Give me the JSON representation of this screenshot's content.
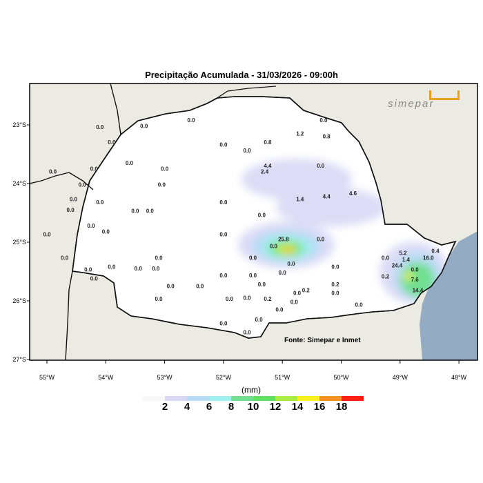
{
  "title": "Precipitação Acumulada - 31/03/2026 - 09:00h",
  "source": "Fonte: Simepar e Inmet",
  "logo": "simepar",
  "legend": {
    "unit": "(mm)",
    "ticks": [
      "2",
      "4",
      "6",
      "8",
      "10",
      "12",
      "14",
      "16",
      "18"
    ],
    "colors": [
      "#f8f8f8",
      "#d8d8f4",
      "#b8dcf4",
      "#a0f0f0",
      "#70e090",
      "#60e060",
      "#a8ec40",
      "#f8f020",
      "#f89020",
      "#f82010"
    ]
  },
  "axes": {
    "lat": [
      "23°S",
      "24°S",
      "25°S",
      "26°S",
      "27°S"
    ],
    "lon": [
      "55°W",
      "54°W",
      "53°W",
      "52°W",
      "51°W",
      "50°W",
      "49°W",
      "48°W"
    ]
  },
  "colors": {
    "land": "#ecebe3",
    "ocean": "#93acc4",
    "state": "#ffffff"
  },
  "stations": [
    {
      "v": "0.0",
      "lon": -54.1,
      "lat": -23.07
    },
    {
      "v": "0.0",
      "lon": -53.35,
      "lat": -23.05
    },
    {
      "v": "0.0",
      "lon": -52.55,
      "lat": -22.95
    },
    {
      "v": "1.2",
      "lon": -50.7,
      "lat": -23.18
    },
    {
      "v": "0.8",
      "lon": -50.25,
      "lat": -23.23
    },
    {
      "v": "0.0",
      "lon": -50.3,
      "lat": -22.95
    },
    {
      "v": "0.0",
      "lon": -53.9,
      "lat": -23.33
    },
    {
      "v": "0.0",
      "lon": -52.0,
      "lat": -23.37
    },
    {
      "v": "0.0",
      "lon": -51.6,
      "lat": -23.47
    },
    {
      "v": "0.8",
      "lon": -51.25,
      "lat": -23.33
    },
    {
      "v": "0.0",
      "lon": -54.2,
      "lat": -23.78
    },
    {
      "v": "0.0",
      "lon": -54.9,
      "lat": -23.83
    },
    {
      "v": "0.0",
      "lon": -53.6,
      "lat": -23.68
    },
    {
      "v": "0.0",
      "lon": -53.0,
      "lat": -23.78
    },
    {
      "v": "4.4",
      "lon": -51.25,
      "lat": -23.73
    },
    {
      "v": "2.4",
      "lon": -51.3,
      "lat": -23.83
    },
    {
      "v": "0.0",
      "lon": -50.35,
      "lat": -23.73
    },
    {
      "v": "0.0",
      "lon": -54.4,
      "lat": -24.05
    },
    {
      "v": "0.0",
      "lon": -53.05,
      "lat": -24.05
    },
    {
      "v": "0.0",
      "lon": -52.0,
      "lat": -24.35
    },
    {
      "v": "1.4",
      "lon": -50.7,
      "lat": -24.3
    },
    {
      "v": "4.4",
      "lon": -50.25,
      "lat": -24.25
    },
    {
      "v": "4.6",
      "lon": -49.8,
      "lat": -24.2
    },
    {
      "v": "0.0",
      "lon": -54.55,
      "lat": -24.3
    },
    {
      "v": "0.0",
      "lon": -54.1,
      "lat": -24.35
    },
    {
      "v": "0.0",
      "lon": -54.6,
      "lat": -24.48
    },
    {
      "v": "0.0",
      "lon": -53.5,
      "lat": -24.5
    },
    {
      "v": "0.0",
      "lon": -53.25,
      "lat": -24.5
    },
    {
      "v": "0.0",
      "lon": -51.35,
      "lat": -24.57
    },
    {
      "v": "0.0",
      "lon": -54.25,
      "lat": -24.75
    },
    {
      "v": "0.0",
      "lon": -54.0,
      "lat": -24.85
    },
    {
      "v": "0.0",
      "lon": -55.0,
      "lat": -24.9
    },
    {
      "v": "0.0",
      "lon": -52.0,
      "lat": -24.9
    },
    {
      "v": "25.8",
      "lon": -50.98,
      "lat": -24.98
    },
    {
      "v": "0.0",
      "lon": -50.35,
      "lat": -24.98
    },
    {
      "v": "0.0",
      "lon": -54.7,
      "lat": -25.3
    },
    {
      "v": "0.0",
      "lon": -53.1,
      "lat": -25.3
    },
    {
      "v": "0.0",
      "lon": -51.5,
      "lat": -25.3
    },
    {
      "v": "0.0",
      "lon": -51.15,
      "lat": -25.1
    },
    {
      "v": "0.0",
      "lon": -50.85,
      "lat": -25.4
    },
    {
      "v": "0.0",
      "lon": -50.1,
      "lat": -25.45
    },
    {
      "v": "0.0",
      "lon": -54.3,
      "lat": -25.5
    },
    {
      "v": "0.0",
      "lon": -53.9,
      "lat": -25.45
    },
    {
      "v": "0.0",
      "lon": -53.45,
      "lat": -25.48
    },
    {
      "v": "0.0",
      "lon": -53.15,
      "lat": -25.48
    },
    {
      "v": "0.0",
      "lon": -54.2,
      "lat": -25.65
    },
    {
      "v": "0.0",
      "lon": -52.0,
      "lat": -25.6
    },
    {
      "v": "0.0",
      "lon": -51.5,
      "lat": -25.6
    },
    {
      "v": "0.0",
      "lon": -51.0,
      "lat": -25.55
    },
    {
      "v": "0.0",
      "lon": -52.9,
      "lat": -25.78
    },
    {
      "v": "0.0",
      "lon": -51.35,
      "lat": -25.75
    },
    {
      "v": "0.2",
      "lon": -50.1,
      "lat": -25.75
    },
    {
      "v": "0.2",
      "lon": -50.6,
      "lat": -25.85
    },
    {
      "v": "0.0",
      "lon": -50.75,
      "lat": -25.9
    },
    {
      "v": "0.0",
      "lon": -50.1,
      "lat": -25.9
    },
    {
      "v": "0.0",
      "lon": -53.1,
      "lat": -26.0
    },
    {
      "v": "0.0",
      "lon": -52.4,
      "lat": -25.78
    },
    {
      "v": "0.0",
      "lon": -51.9,
      "lat": -26.0
    },
    {
      "v": "0.0",
      "lon": -51.6,
      "lat": -25.98
    },
    {
      "v": "0.2",
      "lon": -51.25,
      "lat": -26.0
    },
    {
      "v": "0.0",
      "lon": -50.8,
      "lat": -26.05
    },
    {
      "v": "0.0",
      "lon": -52.0,
      "lat": -26.42
    },
    {
      "v": "0.0",
      "lon": -51.4,
      "lat": -26.35
    },
    {
      "v": "0.0",
      "lon": -51.05,
      "lat": -26.18
    },
    {
      "v": "0.0",
      "lon": -49.7,
      "lat": -26.1
    },
    {
      "v": "0.0",
      "lon": -51.6,
      "lat": -26.57
    },
    {
      "v": "0.2",
      "lon": -49.25,
      "lat": -25.62
    },
    {
      "v": "0.0",
      "lon": -49.25,
      "lat": -25.3
    },
    {
      "v": "5.2",
      "lon": -48.95,
      "lat": -25.22
    },
    {
      "v": "1.4",
      "lon": -48.9,
      "lat": -25.33
    },
    {
      "v": "24.4",
      "lon": -49.05,
      "lat": -25.43
    },
    {
      "v": "0.0",
      "lon": -48.75,
      "lat": -25.5
    },
    {
      "v": "7.6",
      "lon": -48.75,
      "lat": -25.67
    },
    {
      "v": "14.4",
      "lon": -48.7,
      "lat": -25.85
    },
    {
      "v": "0.4",
      "lon": -48.4,
      "lat": -25.18
    },
    {
      "v": "16.0",
      "lon": -48.52,
      "lat": -25.3
    }
  ]
}
